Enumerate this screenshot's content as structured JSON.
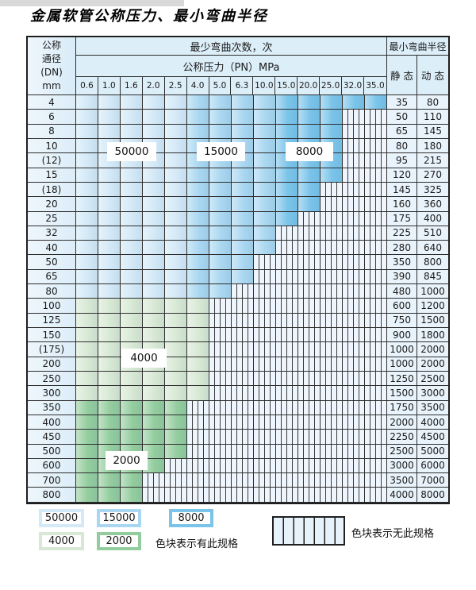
{
  "title": "金属软管公称压力、最小弯曲半径",
  "table": {
    "header": {
      "dn_lines": [
        "公称",
        "通径",
        "(DN)",
        "mm"
      ],
      "bend_cycles_label": "最少弯曲次数，次",
      "pressure_label": "公称压力（PN）MPa",
      "min_radius_label": "最小弯曲半径",
      "static_label": "静 态",
      "dynamic_label": "动 态",
      "pressures": [
        "0.6",
        "1.0",
        "1.6",
        "2.0",
        "2.5",
        "4.0",
        "5.0",
        "6.3",
        "10.0",
        "15.0",
        "20.0",
        "25.0",
        "32.0",
        "35.0"
      ]
    },
    "rows": [
      {
        "dn": "4",
        "colored": 14,
        "band": "blue",
        "static": "35",
        "dynamic": "80"
      },
      {
        "dn": "6",
        "colored": 12,
        "band": "blue",
        "static": "50",
        "dynamic": "110"
      },
      {
        "dn": "8",
        "colored": 12,
        "band": "blue",
        "static": "65",
        "dynamic": "145"
      },
      {
        "dn": "10",
        "colored": 12,
        "band": "blue",
        "static": "80",
        "dynamic": "180"
      },
      {
        "dn": "(12)",
        "colored": 12,
        "band": "blue",
        "static": "95",
        "dynamic": "215"
      },
      {
        "dn": "15",
        "colored": 12,
        "band": "blue",
        "static": "120",
        "dynamic": "270"
      },
      {
        "dn": "(18)",
        "colored": 11,
        "band": "blue",
        "static": "145",
        "dynamic": "325"
      },
      {
        "dn": "20",
        "colored": 11,
        "band": "blue",
        "static": "160",
        "dynamic": "360"
      },
      {
        "dn": "25",
        "colored": 10,
        "band": "blue",
        "static": "175",
        "dynamic": "400"
      },
      {
        "dn": "32",
        "colored": 9,
        "band": "blue",
        "static": "225",
        "dynamic": "510"
      },
      {
        "dn": "40",
        "colored": 9,
        "band": "blue",
        "static": "280",
        "dynamic": "640"
      },
      {
        "dn": "50",
        "colored": 8,
        "band": "blue",
        "static": "350",
        "dynamic": "800"
      },
      {
        "dn": "65",
        "colored": 8,
        "band": "blue",
        "static": "390",
        "dynamic": "845"
      },
      {
        "dn": "80",
        "colored": 7,
        "band": "blue",
        "static": "480",
        "dynamic": "1000"
      },
      {
        "dn": "100",
        "colored": 6,
        "band": "green4000",
        "static": "600",
        "dynamic": "1200"
      },
      {
        "dn": "125",
        "colored": 6,
        "band": "green4000",
        "static": "750",
        "dynamic": "1500"
      },
      {
        "dn": "150",
        "colored": 6,
        "band": "green4000",
        "static": "900",
        "dynamic": "1800"
      },
      {
        "dn": "(175)",
        "colored": 6,
        "band": "green4000",
        "static": "1000",
        "dynamic": "2000"
      },
      {
        "dn": "200",
        "colored": 6,
        "band": "green4000",
        "static": "1000",
        "dynamic": "2000"
      },
      {
        "dn": "250",
        "colored": 6,
        "band": "green4000",
        "static": "1250",
        "dynamic": "2500"
      },
      {
        "dn": "300",
        "colored": 6,
        "band": "green4000",
        "static": "1500",
        "dynamic": "3000"
      },
      {
        "dn": "350",
        "colored": 5,
        "band": "green2000",
        "static": "1750",
        "dynamic": "3500"
      },
      {
        "dn": "400",
        "colored": 5,
        "band": "green2000",
        "static": "2000",
        "dynamic": "4000"
      },
      {
        "dn": "450",
        "colored": 5,
        "band": "green2000",
        "static": "2250",
        "dynamic": "4500"
      },
      {
        "dn": "500",
        "colored": 5,
        "band": "green2000",
        "static": "2500",
        "dynamic": "5000"
      },
      {
        "dn": "600",
        "colored": 4,
        "band": "green2000",
        "static": "3000",
        "dynamic": "6000"
      },
      {
        "dn": "700",
        "colored": 3,
        "band": "green2000",
        "static": "3500",
        "dynamic": "7000"
      },
      {
        "dn": "800",
        "colored": 3,
        "band": "green2000",
        "static": "4000",
        "dynamic": "8000"
      }
    ],
    "overlay_labels": [
      {
        "id": "50000",
        "text": "50000"
      },
      {
        "id": "15000",
        "text": "15000"
      },
      {
        "id": "8000",
        "text": "8000"
      },
      {
        "id": "4000",
        "text": "4000"
      },
      {
        "id": "2000",
        "text": "2000"
      }
    ]
  },
  "zone_colors": {
    "c50000": "#d3e9f7",
    "c15000": "#a9d7f1",
    "c8000": "#7ac4ea",
    "c4000": "#d7e9d4",
    "c2000": "#93cd9e"
  },
  "legend": {
    "entries": [
      {
        "id": "50000",
        "text": "50000",
        "color_key": "c50000"
      },
      {
        "id": "15000",
        "text": "15000",
        "color_key": "c15000"
      },
      {
        "id": "8000",
        "text": "8000",
        "color_key": "c8000"
      },
      {
        "id": "4000",
        "text": "4000",
        "color_key": "c4000"
      },
      {
        "id": "2000",
        "text": "2000",
        "color_key": "c2000"
      }
    ],
    "has_spec_text": "色块表示有此规格",
    "no_spec_text": "色块表示无此规格"
  }
}
